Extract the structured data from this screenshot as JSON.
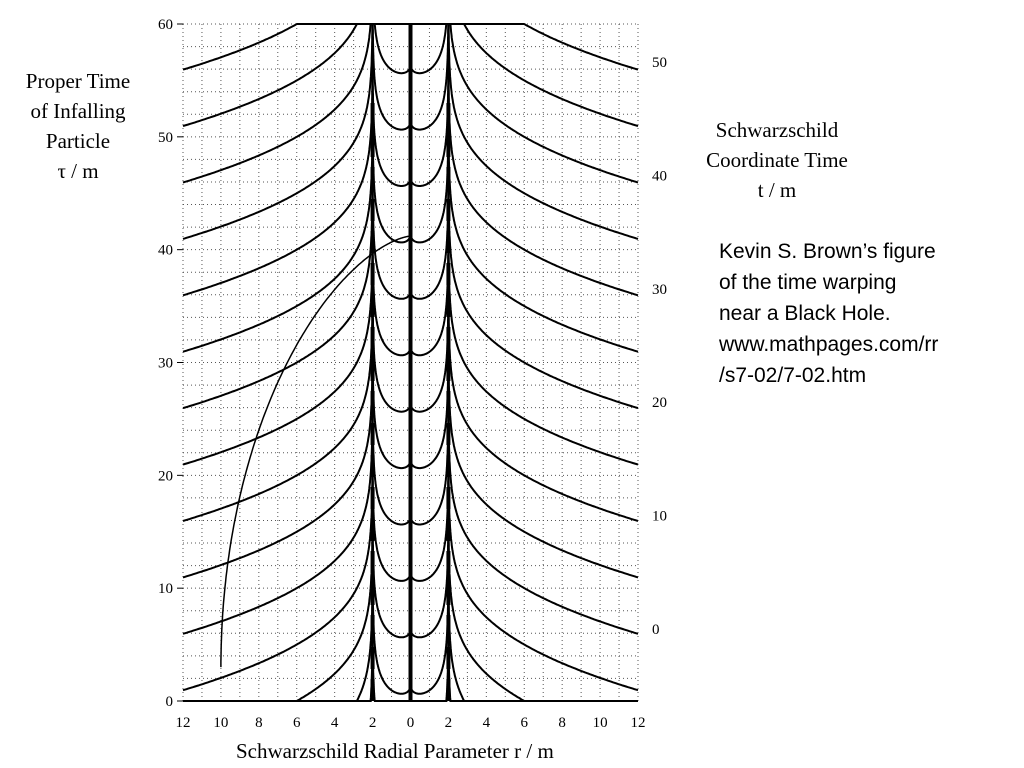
{
  "chart_data": {
    "type": "line",
    "title": "",
    "xlabel": "Schwarzschild Radial Parameter  r / m",
    "ylabel_left": [
      "Proper Time",
      "of Infalling",
      "Particle",
      "τ / m"
    ],
    "ylabel_right": [
      "Schwarzschild",
      "Coordinate Time",
      "t / m"
    ],
    "x_tick_labels": [
      "12",
      "10",
      "8",
      "6",
      "4",
      "2",
      "0",
      "2",
      "4",
      "6",
      "8",
      "10",
      "12"
    ],
    "x_range": [
      -12,
      12
    ],
    "left_axis": {
      "range": [
        0,
        60
      ],
      "ticks": [
        "0",
        "10",
        "20",
        "30",
        "40",
        "50",
        "60"
      ]
    },
    "right_axis": {
      "ticks": [
        "0",
        "10",
        "20",
        "30",
        "40",
        "50"
      ]
    },
    "grid": "dotted",
    "horizon_r": 2,
    "coordinate_time_curve_levels": [
      -10,
      -5,
      0,
      5,
      10,
      15,
      20,
      25,
      30,
      35,
      40,
      45,
      50,
      55,
      60
    ],
    "infall_particle": {
      "start_r": 10,
      "crash_tau": 38.2
    },
    "annotation": [
      "Kevin S. Brown’s figure",
      "of the time warping",
      "near a Black Hole.",
      "www.mathpages.com/rr",
      "/s7-02/7-02.htm"
    ]
  }
}
